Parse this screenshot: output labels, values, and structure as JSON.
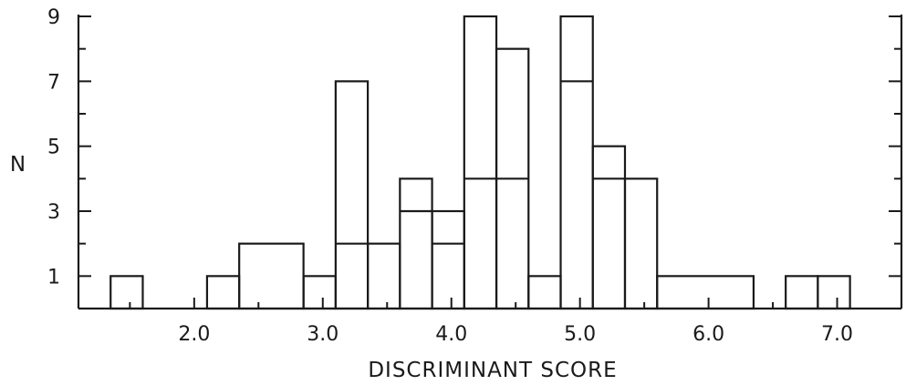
{
  "chart_data": {
    "type": "bar",
    "xlabel": "DISCRIMINANT SCORE",
    "ylabel": "N",
    "xlim": [
      1.1,
      7.5
    ],
    "ylim": [
      0,
      9
    ],
    "x_ticks": [
      {
        "value": 2.0,
        "label": "2.0"
      },
      {
        "value": 3.0,
        "label": "3.0"
      },
      {
        "value": 4.0,
        "label": "4.0"
      },
      {
        "value": 5.0,
        "label": "5.0"
      },
      {
        "value": 6.0,
        "label": "6.0"
      },
      {
        "value": 7.0,
        "label": "7.0"
      }
    ],
    "x_minor_ticks": [
      1.5,
      2.5,
      3.5,
      4.5,
      5.5,
      6.5,
      7.5
    ],
    "y_ticks": [
      {
        "value": 1,
        "label": "1"
      },
      {
        "value": 3,
        "label": "3"
      },
      {
        "value": 5,
        "label": "5"
      },
      {
        "value": 7,
        "label": "7"
      },
      {
        "value": 9,
        "label": "9"
      }
    ],
    "y_minor_ticks": [
      2,
      4,
      6,
      8
    ],
    "series": [
      {
        "bins": [
          {
            "x0": 1.35,
            "x1": 1.6,
            "total": 1,
            "inner": 0
          },
          {
            "x0": 1.6,
            "x1": 2.1,
            "total": 0,
            "inner": 0
          },
          {
            "x0": 2.1,
            "x1": 2.35,
            "total": 1,
            "inner": 0
          },
          {
            "x0": 2.35,
            "x1": 2.85,
            "total": 2,
            "inner": 0
          },
          {
            "x0": 2.85,
            "x1": 3.1,
            "total": 1,
            "inner": 0
          },
          {
            "x0": 3.1,
            "x1": 3.35,
            "total": 7,
            "inner": 2
          },
          {
            "x0": 3.35,
            "x1": 3.6,
            "total": 2,
            "inner": 0
          },
          {
            "x0": 3.6,
            "x1": 3.85,
            "total": 4,
            "inner": 3
          },
          {
            "x0": 3.85,
            "x1": 4.1,
            "total": 3,
            "inner": 2
          },
          {
            "x0": 4.1,
            "x1": 4.35,
            "total": 9,
            "inner": 4
          },
          {
            "x0": 4.35,
            "x1": 4.6,
            "total": 8,
            "inner": 4
          },
          {
            "x0": 4.6,
            "x1": 4.85,
            "total": 1,
            "inner": 0
          },
          {
            "x0": 4.85,
            "x1": 5.1,
            "total": 9,
            "inner": 7
          },
          {
            "x0": 5.1,
            "x1": 5.35,
            "total": 5,
            "inner": 4
          },
          {
            "x0": 5.35,
            "x1": 5.6,
            "total": 4,
            "inner": 0
          },
          {
            "x0": 5.6,
            "x1": 6.35,
            "total": 1,
            "inner": 0
          },
          {
            "x0": 6.35,
            "x1": 6.6,
            "total": 0,
            "inner": 0
          },
          {
            "x0": 6.6,
            "x1": 6.85,
            "total": 1,
            "inner": 0
          },
          {
            "x0": 6.85,
            "x1": 7.1,
            "total": 1,
            "inner": 0
          }
        ]
      }
    ]
  }
}
